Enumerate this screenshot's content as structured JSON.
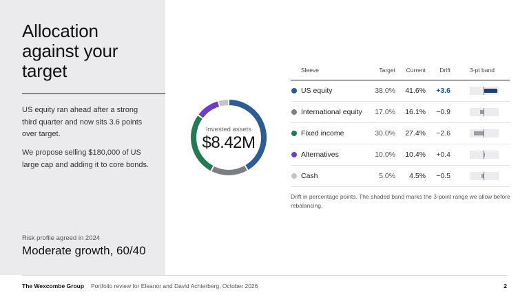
{
  "slide": {
    "title_lines": [
      "Allocation",
      "against your",
      "target"
    ],
    "lead_paragraphs": [
      "US equity ran ahead after a strong third quarter and now sits 3.6 points over target.",
      "We propose selling $180,000 of US large cap and adding it to core bonds."
    ],
    "risk_label": "Risk profile agreed in 2024",
    "risk_value": "Moderate growth, 60/40"
  },
  "donut": {
    "caption": "Invested assets",
    "total": "$8.42M"
  },
  "table": {
    "headers": {
      "sleeve": "Sleeve",
      "target": "Target",
      "current": "Current",
      "drift": "Drift",
      "band": "3-pt band"
    },
    "rows": [
      {
        "name": "US equity",
        "target": "38.0%",
        "current": "41.6%",
        "drift": "+3.6",
        "current_value": 41.6,
        "drift_value": 3.6,
        "color": "#2d5b94",
        "band_color": "#1e3f6e",
        "strong": true
      },
      {
        "name": "International equity",
        "target": "17.0%",
        "current": "16.1%",
        "drift": "−0.9",
        "current_value": 16.1,
        "drift_value": -0.9,
        "color": "#7d7f86",
        "band_color": "#9a9ca4",
        "strong": false
      },
      {
        "name": "Fixed income",
        "target": "30.0%",
        "current": "27.4%",
        "drift": "−2.6",
        "current_value": 27.4,
        "drift_value": -2.6,
        "color": "#217a52",
        "band_color": "#9a9ca4",
        "strong": false
      },
      {
        "name": "Alternatives",
        "target": "10.0%",
        "current": "10.4%",
        "drift": "+0.4",
        "current_value": 10.4,
        "drift_value": 0.4,
        "color": "#6a3fc4",
        "band_color": "#9a9ca4",
        "strong": false
      },
      {
        "name": "Cash",
        "target": "5.0%",
        "current": "4.5%",
        "drift": "−0.5",
        "current_value": 4.5,
        "drift_value": -0.5,
        "color": "#c3c4c9",
        "band_color": "#9a9ca4",
        "strong": false
      }
    ],
    "footnote": "Drift in percentage points. The shaded band marks the 3-point range we allow before rebalancing."
  },
  "footer": {
    "brand": "The Wexcombe Group",
    "text": "Portfolio review for Eleanor and David Achterberg, October 2026",
    "page": "2"
  }
}
